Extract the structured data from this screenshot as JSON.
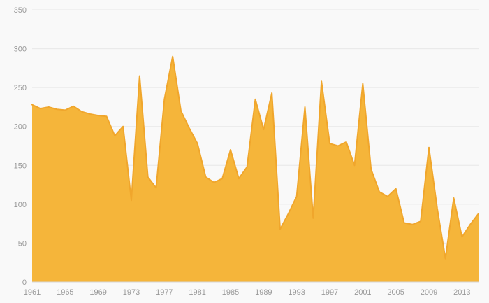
{
  "chart_data": {
    "type": "area",
    "title": "",
    "xlabel": "",
    "ylabel": "",
    "x": [
      1961,
      1962,
      1963,
      1964,
      1965,
      1966,
      1967,
      1968,
      1969,
      1970,
      1971,
      1972,
      1973,
      1974,
      1975,
      1976,
      1977,
      1978,
      1979,
      1980,
      1981,
      1982,
      1983,
      1984,
      1985,
      1986,
      1987,
      1988,
      1989,
      1990,
      1991,
      1992,
      1993,
      1994,
      1995,
      1996,
      1997,
      1998,
      1999,
      2000,
      2001,
      2002,
      2003,
      2004,
      2005,
      2006,
      2007,
      2008,
      2009,
      2010,
      2011,
      2012,
      2013,
      2014,
      2015
    ],
    "values": [
      228,
      223,
      225,
      222,
      221,
      226,
      219,
      216,
      214,
      213,
      188,
      200,
      105,
      265,
      135,
      121,
      235,
      290,
      220,
      198,
      178,
      135,
      128,
      133,
      170,
      133,
      148,
      235,
      196,
      243,
      68,
      88,
      110,
      225,
      82,
      258,
      178,
      175,
      180,
      150,
      255,
      145,
      116,
      110,
      120,
      76,
      74,
      78,
      173,
      95,
      30,
      108,
      58,
      74,
      88
    ],
    "ylim": [
      0,
      350
    ],
    "xlim": [
      1961,
      2015
    ],
    "yticks": [
      0,
      50,
      100,
      150,
      200,
      250,
      300,
      350
    ],
    "xticks": [
      1961,
      1965,
      1969,
      1973,
      1977,
      1981,
      1985,
      1989,
      1993,
      1997,
      2001,
      2005,
      2009,
      2013
    ],
    "grid": true,
    "legend": false,
    "colors": {
      "fill": "#f5b53a",
      "stroke": "#f0a62c",
      "background": "#f9f9f9",
      "grid": "#e8e8e8",
      "axis_line": "#d8d8d8",
      "tick_text": "#999999"
    }
  }
}
